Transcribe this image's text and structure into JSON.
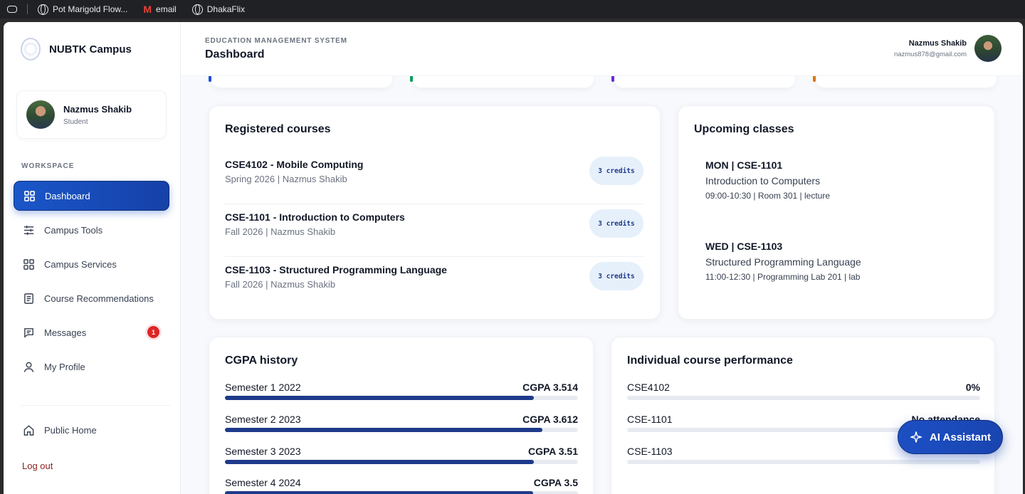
{
  "browser": {
    "bookmarks": [
      {
        "label": "Pot Marigold Flow...",
        "icon": "globe-icon"
      },
      {
        "label": "email",
        "icon": "gmail-icon"
      },
      {
        "label": "DhakaFlix",
        "icon": "globe-icon"
      }
    ]
  },
  "sidebar": {
    "brand": "NUBTK Campus",
    "user": {
      "name": "Nazmus Shakib",
      "role": "Student"
    },
    "section_label": "WORKSPACE",
    "items": [
      {
        "label": "Dashboard",
        "icon": "grid-icon",
        "active": true
      },
      {
        "label": "Campus Tools",
        "icon": "sliders-icon"
      },
      {
        "label": "Campus Services",
        "icon": "apps-icon"
      },
      {
        "label": "Course Recommendations",
        "icon": "document-icon"
      },
      {
        "label": "Messages",
        "icon": "message-icon",
        "badge": "1"
      },
      {
        "label": "My Profile",
        "icon": "user-icon"
      }
    ],
    "public_home": "Public Home",
    "logout": "Log out"
  },
  "header": {
    "eyebrow": "EDUCATION MANAGEMENT SYSTEM",
    "title": "Dashboard",
    "user_name": "Nazmus Shakib",
    "user_email": "nazmus878@gmail.com"
  },
  "stat_accents": [
    "#1d4ed8",
    "#0f9d58",
    "#6d28d9",
    "#d97706"
  ],
  "registered_courses": {
    "title": "Registered courses",
    "items": [
      {
        "name": "CSE4102 - Mobile Computing",
        "meta": "Spring 2026 | Nazmus Shakib",
        "credits": "3 credits"
      },
      {
        "name": "CSE-1101 - Introduction to Computers",
        "meta": "Fall 2026 | Nazmus Shakib",
        "credits": "3 credits"
      },
      {
        "name": "CSE-1103 - Structured Programming Language",
        "meta": "Fall 2026 | Nazmus Shakib",
        "credits": "3 credits"
      }
    ]
  },
  "upcoming_classes": {
    "title": "Upcoming classes",
    "items": [
      {
        "code": "MON | CSE-1101",
        "title": "Introduction to Computers",
        "meta": "09:00-10:30 | Room 301 | lecture"
      },
      {
        "code": "WED | CSE-1103",
        "title": "Structured Programming Language",
        "meta": "11:00-12:30 | Programming Lab 201 | lab"
      }
    ]
  },
  "cgpa_history": {
    "title": "CGPA history",
    "items": [
      {
        "label": "Semester 1 2022",
        "value_text": "CGPA 3.514",
        "fill": 0.876
      },
      {
        "label": "Semester 2 2023",
        "value_text": "CGPA 3.612",
        "fill": 0.9
      },
      {
        "label": "Semester 3 2023",
        "value_text": "CGPA 3.51",
        "fill": 0.875
      },
      {
        "label": "Semester 4 2024",
        "value_text": "CGPA 3.5",
        "fill": 0.873
      }
    ]
  },
  "course_performance": {
    "title": "Individual course performance",
    "items": [
      {
        "label": "CSE4102",
        "value_text": "0%"
      },
      {
        "label": "CSE-1101",
        "value_text": "No attendance"
      },
      {
        "label": "CSE-1103",
        "value_text": ""
      }
    ]
  },
  "ai_button": {
    "label": "AI Assistant"
  }
}
